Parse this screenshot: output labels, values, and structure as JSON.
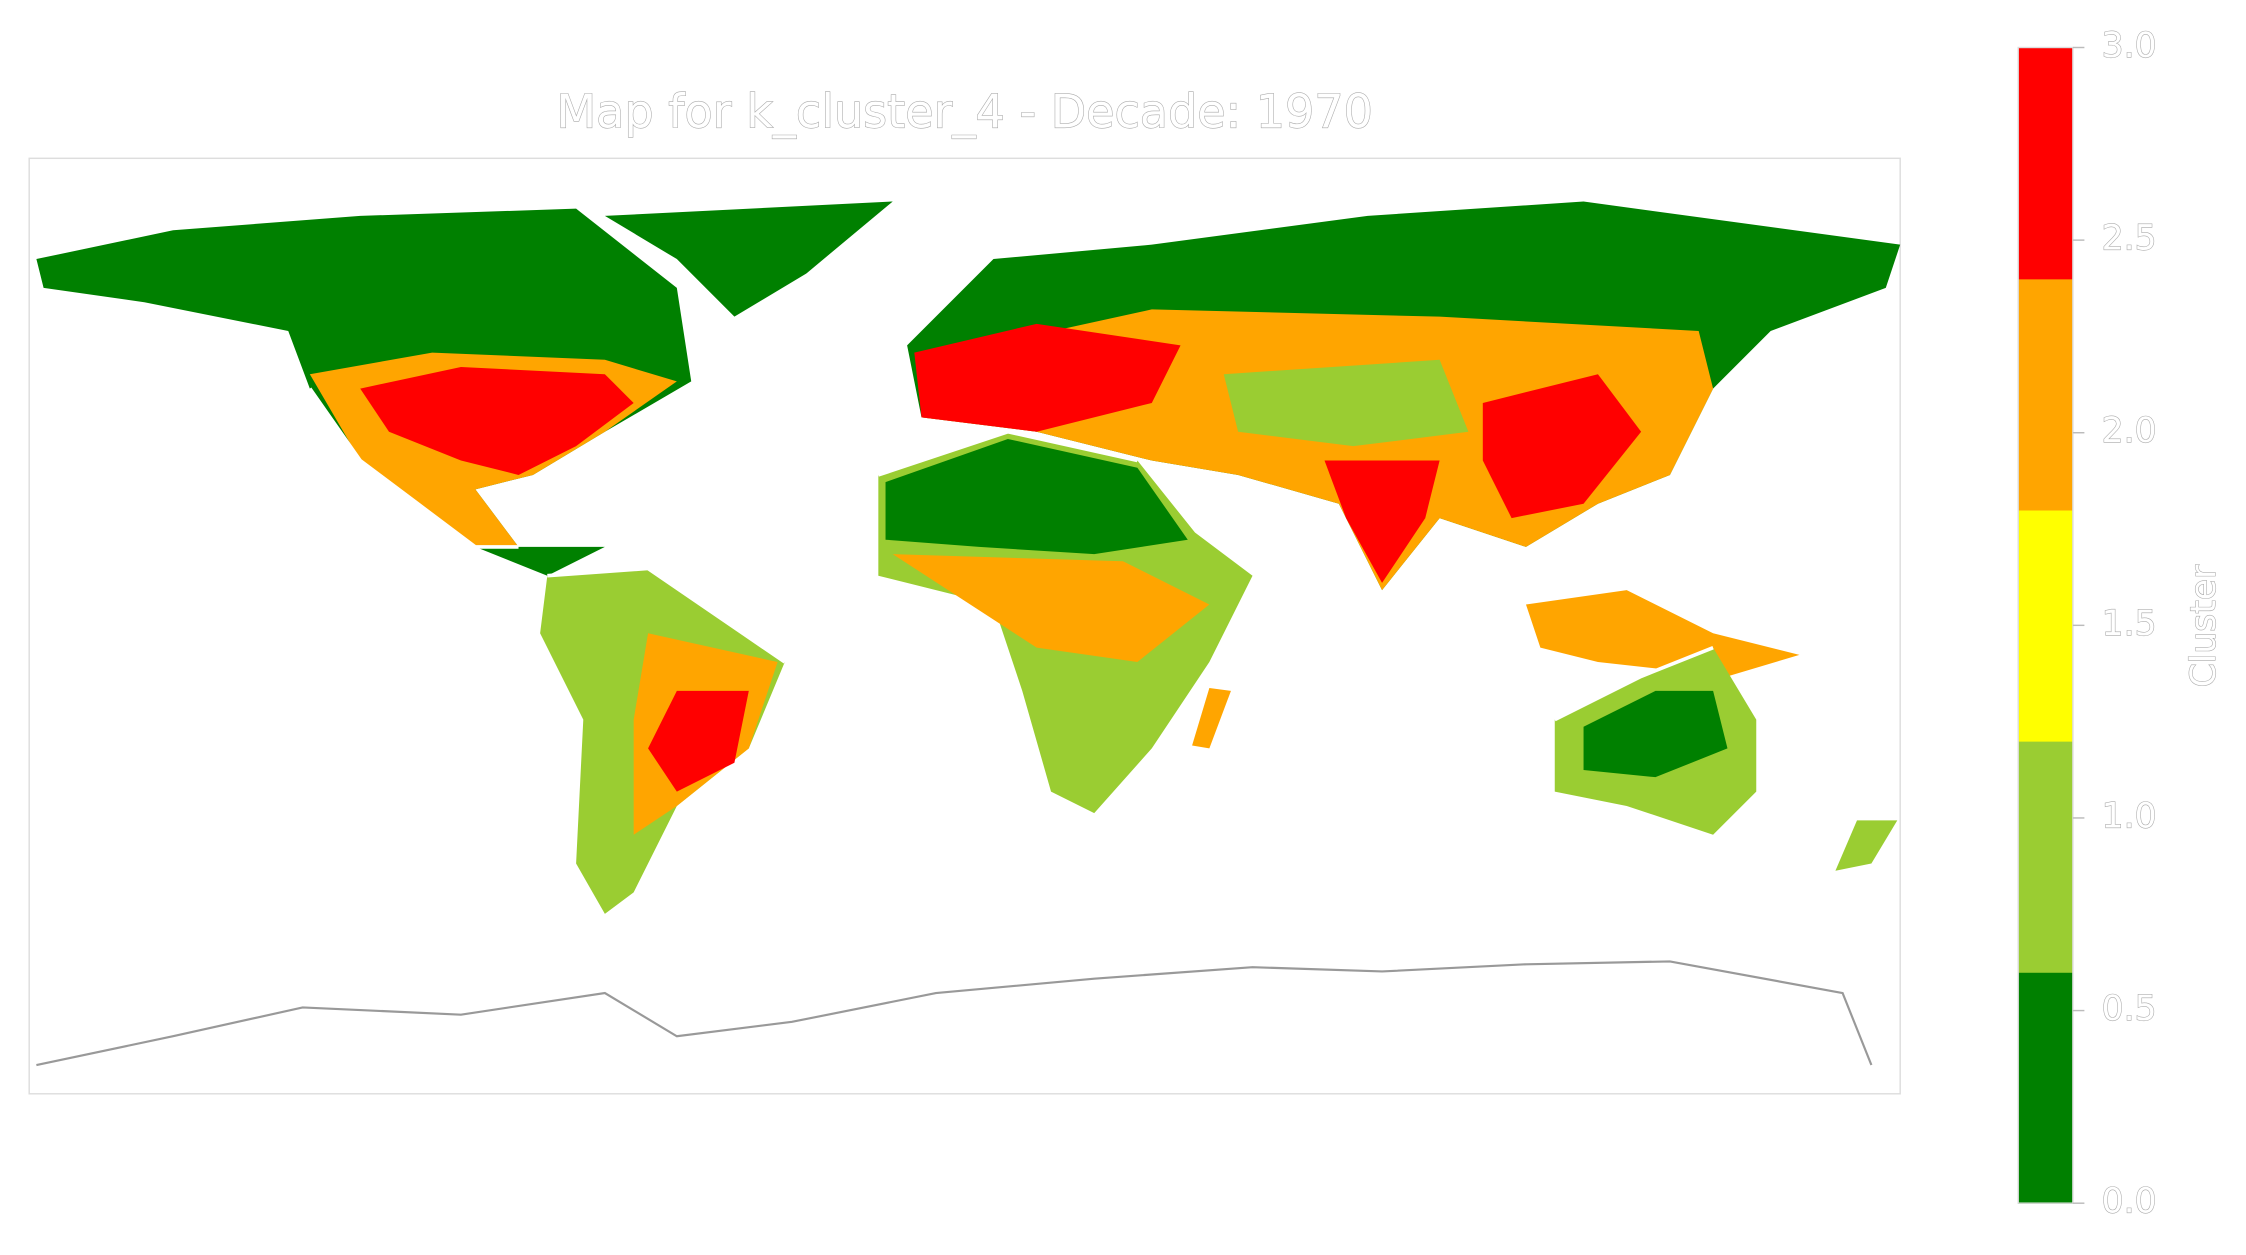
{
  "chart_data": {
    "type": "map",
    "title": "Map for k_cluster_4 - Decade: 1970",
    "colorbar": {
      "label": "Cluster",
      "lim": [
        0,
        3
      ],
      "colors": [
        "#008000",
        "#9acd32",
        "#ffff00",
        "#ffa500",
        "#ff0000"
      ],
      "ticks": [
        {
          "value": 0,
          "label": "0.0"
        },
        {
          "value": 0.5,
          "label": "0.5"
        },
        {
          "value": 1,
          "label": "1.0"
        },
        {
          "value": 1.5,
          "label": "1.5"
        },
        {
          "value": 2,
          "label": "2.0"
        },
        {
          "value": 2.5,
          "label": "2.5"
        },
        {
          "value": 3,
          "label": "3.0"
        }
      ]
    }
  }
}
